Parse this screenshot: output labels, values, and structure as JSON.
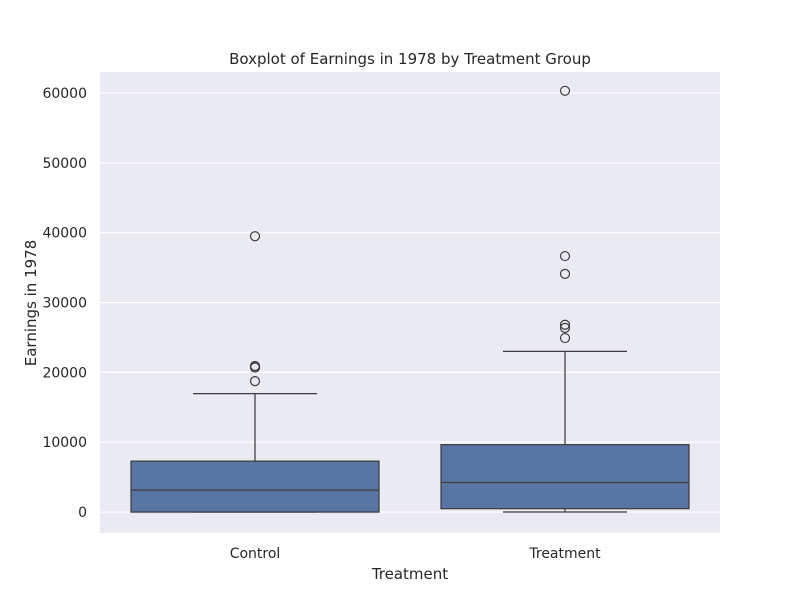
{
  "chart_data": {
    "type": "box",
    "title": "Boxplot of Earnings in 1978 by Treatment Group",
    "xlabel": "Treatment",
    "ylabel": "Earnings in 1978",
    "ylim": [
      -3000,
      63000
    ],
    "yticks": [
      0,
      10000,
      20000,
      30000,
      40000,
      50000,
      60000
    ],
    "ytick_labels": [
      "0",
      "10000",
      "20000",
      "30000",
      "40000",
      "50000",
      "60000"
    ],
    "categories": [
      "Control",
      "Treatment"
    ],
    "grid": true,
    "series": [
      {
        "category": "Control",
        "min": 0,
        "q1": 0,
        "median": 3139,
        "q3": 7290,
        "whisker_low": 0,
        "whisker_high": 16961,
        "outliers": [
          18740,
          20690,
          20893,
          20900,
          39483
        ]
      },
      {
        "category": "Treatment",
        "min": 0,
        "q1": 485,
        "median": 4232,
        "q3": 9643,
        "whisker_low": 0,
        "whisker_high": 23005,
        "outliers": [
          24909,
          26372,
          26817,
          34099,
          36647,
          60308
        ]
      }
    ],
    "colors": {
      "background": "#eaeaf2",
      "grid": "#ffffff",
      "box_fill": "#5975a4",
      "box_edge": "#3d3d3d",
      "text": "#262626"
    }
  }
}
